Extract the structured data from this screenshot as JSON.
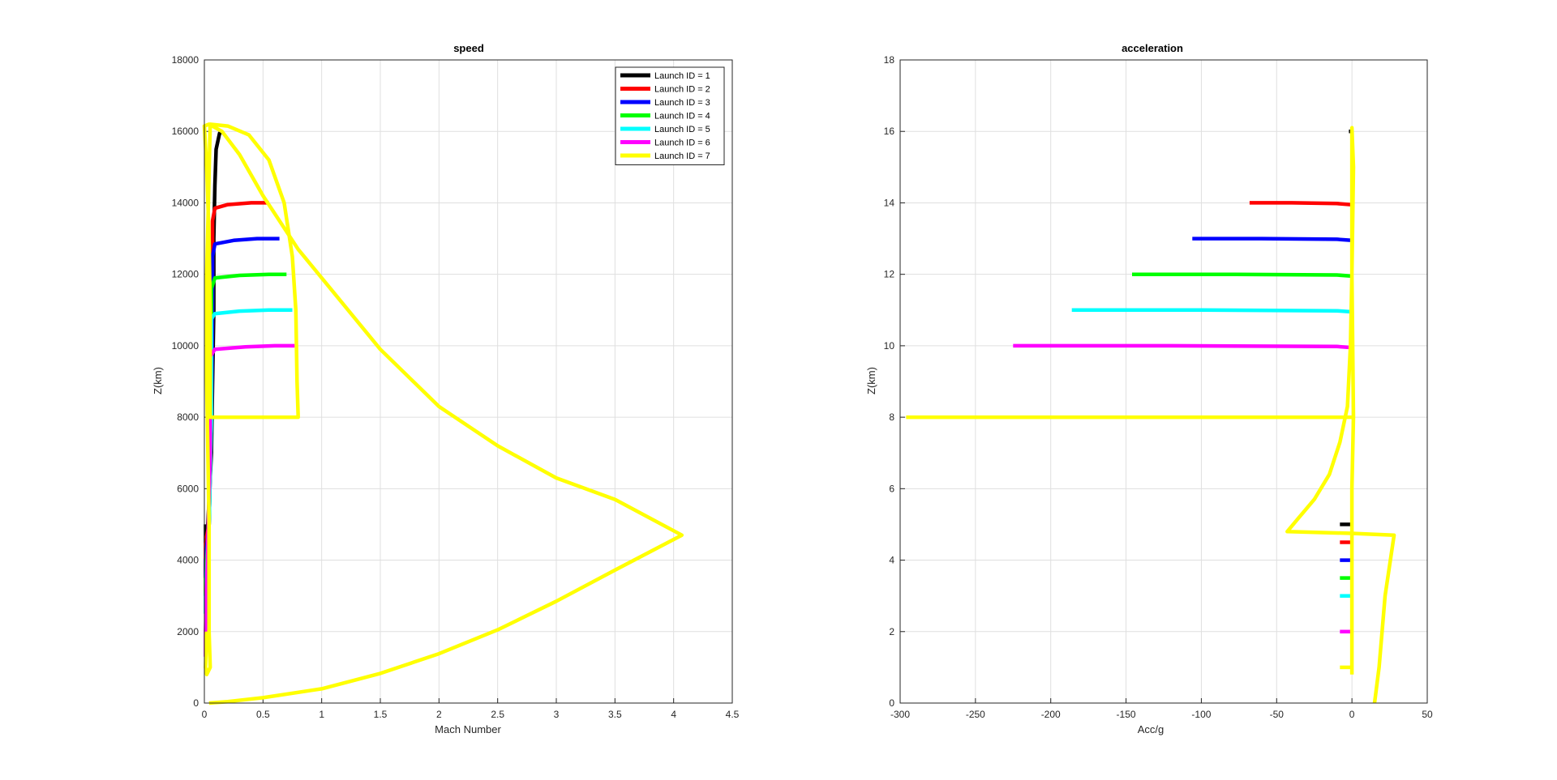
{
  "chart_data": [
    {
      "type": "line",
      "title": "speed",
      "xlabel": "Mach Number",
      "ylabel": "Z(km)",
      "xlim": [
        0,
        4.5
      ],
      "ylim": [
        0,
        18000
      ],
      "xticks": [
        "0",
        "0.5",
        "1",
        "1.5",
        "2",
        "2.5",
        "3",
        "3.5",
        "4",
        "4.5"
      ],
      "yticks": [
        "0",
        "2000",
        "4000",
        "6000",
        "8000",
        "10000",
        "12000",
        "14000",
        "16000",
        "18000"
      ],
      "grid": true,
      "legend_position": "top-right",
      "series": [
        {
          "name": "Launch ID = 1",
          "color": "#000000",
          "points": [
            [
              0.01,
              5000
            ],
            [
              0.01,
              4500
            ],
            [
              0.03,
              5000
            ],
            [
              0.06,
              7000
            ],
            [
              0.07,
              9000
            ],
            [
              0.08,
              11000
            ],
            [
              0.08,
              13000
            ],
            [
              0.09,
              14500
            ],
            [
              0.1,
              15500
            ],
            [
              0.13,
              15950
            ],
            [
              0.16,
              16000
            ]
          ]
        },
        {
          "name": "Launch ID = 2",
          "color": "#ff0000",
          "points": [
            [
              0.01,
              3500
            ],
            [
              0.01,
              4500
            ],
            [
              0.04,
              5000
            ],
            [
              0.06,
              8000
            ],
            [
              0.07,
              11000
            ],
            [
              0.07,
              13500
            ],
            [
              0.09,
              13850
            ],
            [
              0.2,
              13950
            ],
            [
              0.4,
              14000
            ],
            [
              0.55,
              14000
            ]
          ]
        },
        {
          "name": "Launch ID = 3",
          "color": "#0000ff",
          "points": [
            [
              0.01,
              3500
            ],
            [
              0.01,
              4000
            ],
            [
              0.04,
              5000
            ],
            [
              0.06,
              8000
            ],
            [
              0.07,
              11000
            ],
            [
              0.07,
              12500
            ],
            [
              0.09,
              12850
            ],
            [
              0.25,
              12950
            ],
            [
              0.45,
              13000
            ],
            [
              0.64,
              13000
            ]
          ]
        },
        {
          "name": "Launch ID = 4",
          "color": "#00ff00",
          "points": [
            [
              0.01,
              3000
            ],
            [
              0.01,
              3500
            ],
            [
              0.04,
              5000
            ],
            [
              0.06,
              8000
            ],
            [
              0.06,
              10500
            ],
            [
              0.06,
              11600
            ],
            [
              0.09,
              11900
            ],
            [
              0.3,
              11970
            ],
            [
              0.55,
              12000
            ],
            [
              0.7,
              12000
            ]
          ]
        },
        {
          "name": "Launch ID = 5",
          "color": "#00ffff",
          "points": [
            [
              0.01,
              2500
            ],
            [
              0.01,
              3000
            ],
            [
              0.04,
              5000
            ],
            [
              0.06,
              8000
            ],
            [
              0.06,
              10000
            ],
            [
              0.06,
              10750
            ],
            [
              0.09,
              10900
            ],
            [
              0.3,
              10970
            ],
            [
              0.55,
              11000
            ],
            [
              0.75,
              11000
            ]
          ]
        },
        {
          "name": "Launch ID = 6",
          "color": "#ff00ff",
          "points": [
            [
              0.01,
              1300
            ],
            [
              0.01,
              2000
            ],
            [
              0.03,
              4500
            ],
            [
              0.05,
              7000
            ],
            [
              0.05,
              8500
            ],
            [
              0.05,
              9700
            ],
            [
              0.09,
              9900
            ],
            [
              0.35,
              9970
            ],
            [
              0.6,
              10000
            ],
            [
              0.77,
              10000
            ]
          ]
        },
        {
          "name": "Launch ID = 7",
          "color": "#ffff00",
          "points": [
            [
              0.04,
              0
            ],
            [
              0.2,
              40
            ],
            [
              0.5,
              150
            ],
            [
              1.0,
              400
            ],
            [
              1.5,
              830
            ],
            [
              2.0,
              1380
            ],
            [
              2.5,
              2050
            ],
            [
              3.0,
              2850
            ],
            [
              3.5,
              3720
            ],
            [
              4.07,
              4700
            ],
            [
              3.5,
              5700
            ],
            [
              3.0,
              6300
            ],
            [
              2.5,
              7200
            ],
            [
              2.0,
              8300
            ],
            [
              1.5,
              9900
            ],
            [
              1.1,
              11500
            ],
            [
              0.8,
              12700
            ],
            [
              0.5,
              14200
            ],
            [
              0.3,
              15350
            ],
            [
              0.15,
              16000
            ],
            [
              0.04,
              16200
            ],
            [
              0.0,
              16150
            ],
            [
              0.02,
              15000
            ],
            [
              0.04,
              13000
            ],
            [
              0.05,
              11000
            ],
            [
              0.05,
              9000
            ],
            [
              0.05,
              8000
            ],
            [
              0.2,
              8000
            ],
            [
              0.5,
              8000
            ],
            [
              0.8,
              8000
            ],
            [
              0.79,
              9000
            ],
            [
              0.78,
              11000
            ],
            [
              0.75,
              12500
            ],
            [
              0.68,
              14000
            ],
            [
              0.55,
              15200
            ],
            [
              0.38,
              15900
            ],
            [
              0.2,
              16150
            ],
            [
              0.05,
              16200
            ],
            [
              0.02,
              12000
            ],
            [
              0.02,
              9000
            ],
            [
              0.04,
              5000
            ],
            [
              0.04,
              2000
            ],
            [
              0.05,
              1000
            ],
            [
              0.02,
              800
            ],
            [
              0.01,
              1000
            ],
            [
              0.02,
              2000
            ]
          ]
        }
      ]
    },
    {
      "type": "line",
      "title": "acceleration",
      "xlabel": "Acc/g",
      "ylabel": "Z(km)",
      "xlim": [
        -300,
        50
      ],
      "ylim": [
        0,
        18
      ],
      "xticks": [
        "-300",
        "-250",
        "-200",
        "-150",
        "-100",
        "-50",
        "0",
        "50"
      ],
      "yticks": [
        "0",
        "2",
        "4",
        "6",
        "8",
        "10",
        "12",
        "14",
        "16",
        "18"
      ],
      "grid": true,
      "series": [
        {
          "name": "Launch ID = 1",
          "color": "#000000",
          "points": [
            [
              -8,
              5
            ],
            [
              -1,
              5
            ]
          ],
          "points2": [
            [
              -2,
              16
            ],
            [
              1,
              16
            ]
          ]
        },
        {
          "name": "Launch ID = 2",
          "color": "#ff0000",
          "points": [
            [
              -8,
              4.5
            ],
            [
              -1,
              4.5
            ]
          ],
          "points2": [
            [
              -68,
              14
            ],
            [
              -40,
              14
            ],
            [
              -10,
              13.98
            ],
            [
              0,
              13.95
            ]
          ]
        },
        {
          "name": "Launch ID = 3",
          "color": "#0000ff",
          "points": [
            [
              -8,
              4
            ],
            [
              -1,
              4
            ]
          ],
          "points2": [
            [
              -106,
              13
            ],
            [
              -60,
              13
            ],
            [
              -10,
              12.98
            ],
            [
              0,
              12.95
            ]
          ]
        },
        {
          "name": "Launch ID = 4",
          "color": "#00ff00",
          "points": [
            [
              -8,
              3.5
            ],
            [
              -1,
              3.5
            ]
          ],
          "points2": [
            [
              -146,
              12
            ],
            [
              -80,
              12
            ],
            [
              -10,
              11.98
            ],
            [
              0,
              11.95
            ]
          ]
        },
        {
          "name": "Launch ID = 5",
          "color": "#00ffff",
          "points": [
            [
              -8,
              3
            ],
            [
              -1,
              3
            ]
          ],
          "points2": [
            [
              -186,
              11
            ],
            [
              -100,
              11
            ],
            [
              -10,
              10.98
            ],
            [
              0,
              10.95
            ]
          ]
        },
        {
          "name": "Launch ID = 6",
          "color": "#ff00ff",
          "points": [
            [
              -8,
              2
            ],
            [
              -1,
              2
            ]
          ],
          "points2": [
            [
              -225,
              10
            ],
            [
              -120,
              10
            ],
            [
              -10,
              9.98
            ],
            [
              0,
              9.95
            ]
          ]
        },
        {
          "name": "Launch ID = 7",
          "color": "#ffff00",
          "points": [
            [
              -8,
              1
            ],
            [
              -1,
              1
            ]
          ],
          "points2": [
            [
              15,
              0
            ],
            [
              18,
              1
            ],
            [
              22,
              3
            ],
            [
              28,
              4.7
            ],
            [
              0,
              4.75
            ],
            [
              -43,
              4.8
            ],
            [
              -35,
              5.2
            ],
            [
              -25,
              5.7
            ],
            [
              -15,
              6.4
            ],
            [
              -8,
              7.3
            ],
            [
              -3,
              8.3
            ],
            [
              -1,
              10
            ],
            [
              0,
              12
            ],
            [
              0,
              14
            ],
            [
              0,
              16.1
            ],
            [
              1,
              15
            ],
            [
              0,
              12
            ],
            [
              1,
              8
            ],
            [
              0,
              6
            ],
            [
              0,
              4
            ],
            [
              0,
              2
            ],
            [
              0,
              0.8
            ]
          ],
          "points3": [
            [
              -296,
              8
            ],
            [
              -150,
              8
            ],
            [
              0,
              8
            ],
            [
              1,
              8
            ]
          ]
        }
      ]
    }
  ]
}
